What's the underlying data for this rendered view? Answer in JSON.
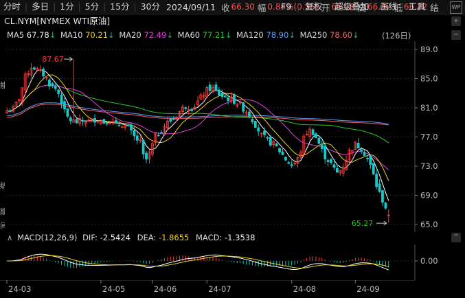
{
  "toolbar": {
    "periods": [
      "分时",
      "多日",
      "1分",
      "5分",
      "15分",
      "30分"
    ],
    "date": "2024/09/11",
    "close_label": "收",
    "close_value": "66.30",
    "change_label": "幅",
    "change_value": "0.84%(0.55)",
    "open_label": "开",
    "open_value": "66.28",
    "high_label": "高",
    "high_value": "66.37",
    "low_label": "低",
    "low_value": "66.22",
    "settle_label": "结",
    "right_items": [
      "F9",
      "复权",
      "超级叠加",
      "画线",
      "工具"
    ],
    "icon_text": "WP"
  },
  "title": "CL.NYM[NYMEX WTI原油]",
  "ma": [
    {
      "label": "MA5",
      "value": "67.78",
      "arrow": "↓",
      "color": "#ffffff"
    },
    {
      "label": "MA10",
      "value": "70.21",
      "arrow": "↓",
      "color": "#f0d020"
    },
    {
      "label": "MA20",
      "value": "72.49",
      "arrow": "↓",
      "color": "#e040e0"
    },
    {
      "label": "MA60",
      "value": "77.21",
      "arrow": "↓",
      "color": "#28c828"
    },
    {
      "label": "MA120",
      "value": "78.90",
      "arrow": "↓",
      "color": "#5aa0ff"
    },
    {
      "label": "MA250",
      "value": "78.60",
      "arrow": "↓",
      "color": "#ff6060"
    }
  ],
  "days_button": "(126日)",
  "price_axis": [
    "89.0",
    "85.0",
    "81.0",
    "77.0",
    "73.0",
    "69.0",
    "65.0"
  ],
  "annotations": {
    "high": "87.67",
    "low": "65.27"
  },
  "macd": {
    "label": "MACD(12,26,9)",
    "dif_label": "DIF:",
    "dif_value": "-2.5424",
    "dea_label": "DEA:",
    "dea_value": "-1.8655",
    "macd_label": "MACD:",
    "macd_value": "-1.3538",
    "axis": [
      "0.00"
    ]
  },
  "date_axis": [
    "24-03",
    "24-05",
    "24-06",
    "24-07",
    "24-08",
    "24-09"
  ],
  "left_edge_chars": [
    "能",
    "统",
    "期",
    "间"
  ],
  "controls": {
    "plus": "+",
    "minus": "−",
    "collapse": "^"
  },
  "colors": {
    "up": "#ff3b3b",
    "down": "#19c8c8",
    "ma5": "#ffffff",
    "ma10": "#f0d020",
    "ma20": "#e040e0",
    "ma60": "#28c828",
    "ma120": "#5aa0ff",
    "ma250": "#ff6060",
    "dif": "#ffffff",
    "dea": "#f0d020"
  }
}
